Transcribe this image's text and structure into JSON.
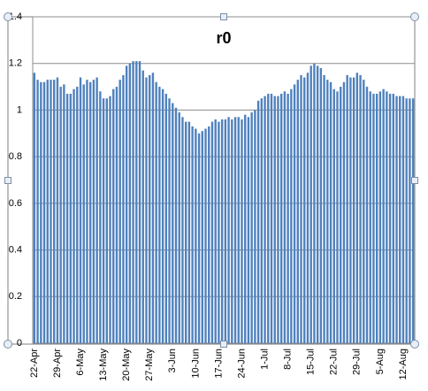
{
  "chart_data": {
    "type": "bar",
    "title": "r0",
    "categories": [
      "22-Apr",
      null,
      null,
      null,
      null,
      null,
      null,
      "29-Apr",
      null,
      null,
      null,
      null,
      null,
      null,
      "6-May",
      null,
      null,
      null,
      null,
      null,
      null,
      "13-May",
      null,
      null,
      null,
      null,
      null,
      null,
      "20-May",
      null,
      null,
      null,
      null,
      null,
      null,
      "27-May",
      null,
      null,
      null,
      null,
      null,
      null,
      "3-Jun",
      null,
      null,
      null,
      null,
      null,
      null,
      "10-Jun",
      null,
      null,
      null,
      null,
      null,
      null,
      "17-Jun",
      null,
      null,
      null,
      null,
      null,
      null,
      "24-Jun",
      null,
      null,
      null,
      null,
      null,
      null,
      "1-Jul",
      null,
      null,
      null,
      null,
      null,
      null,
      "8-Jul",
      null,
      null,
      null,
      null,
      null,
      null,
      "15-Jul",
      null,
      null,
      null,
      null,
      null,
      null,
      "22-Jul",
      null,
      null,
      null,
      null,
      null,
      null,
      "29-Jul",
      null,
      null,
      null,
      null,
      null,
      null,
      "5-Aug",
      null,
      null,
      null,
      null,
      null,
      null,
      "12-Aug",
      null,
      null,
      null
    ],
    "values": [
      1.16,
      1.13,
      1.12,
      1.12,
      1.13,
      1.13,
      1.13,
      1.14,
      1.1,
      1.11,
      1.07,
      1.07,
      1.09,
      1.1,
      1.14,
      1.11,
      1.13,
      1.12,
      1.13,
      1.14,
      1.08,
      1.05,
      1.05,
      1.06,
      1.09,
      1.1,
      1.13,
      1.15,
      1.19,
      1.2,
      1.21,
      1.21,
      1.21,
      1.17,
      1.14,
      1.15,
      1.16,
      1.12,
      1.1,
      1.09,
      1.07,
      1.05,
      1.03,
      1.01,
      0.99,
      0.97,
      0.95,
      0.95,
      0.93,
      0.92,
      0.9,
      0.91,
      0.92,
      0.93,
      0.95,
      0.96,
      0.95,
      0.96,
      0.96,
      0.97,
      0.96,
      0.97,
      0.97,
      0.96,
      0.98,
      0.97,
      0.99,
      1.0,
      1.04,
      1.05,
      1.06,
      1.07,
      1.07,
      1.06,
      1.06,
      1.07,
      1.08,
      1.07,
      1.09,
      1.11,
      1.13,
      1.15,
      1.14,
      1.16,
      1.19,
      1.2,
      1.19,
      1.18,
      1.15,
      1.13,
      1.12,
      1.09,
      1.08,
      1.1,
      1.12,
      1.15,
      1.14,
      1.14,
      1.16,
      1.15,
      1.13,
      1.1,
      1.08,
      1.07,
      1.07,
      1.08,
      1.09,
      1.08,
      1.07,
      1.07,
      1.06,
      1.06,
      1.06,
      1.05,
      1.05,
      1.05
    ],
    "color": "#4f81bd",
    "ylim": [
      0,
      1.4
    ],
    "yticks": [
      0,
      0.2,
      0.4,
      0.6,
      0.8,
      1,
      1.2,
      1.4
    ],
    "grid": true
  }
}
